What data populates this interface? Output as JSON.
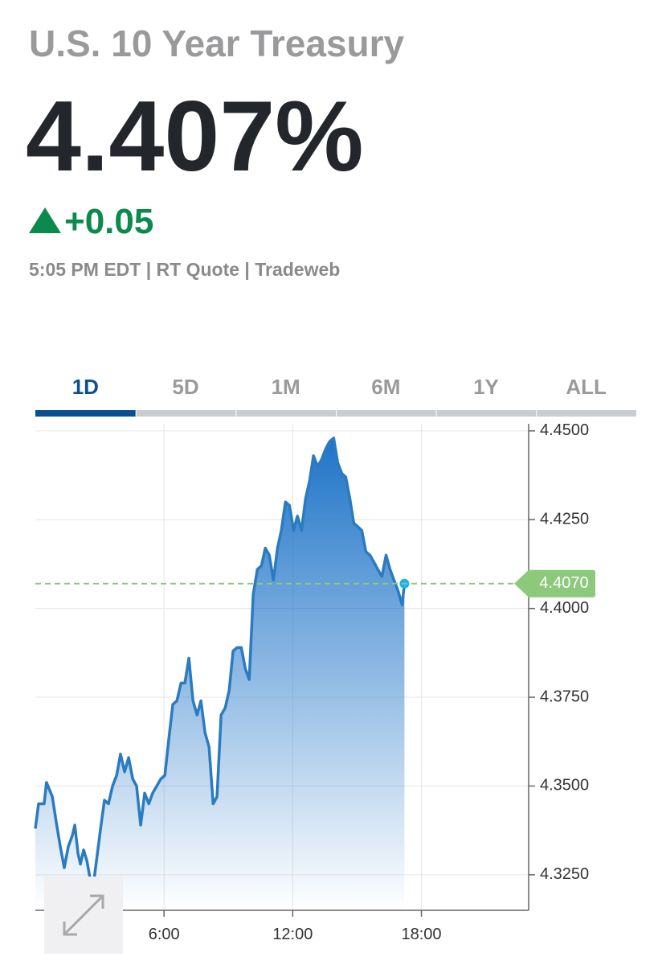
{
  "header": {
    "title": "U.S. 10 Year Treasury",
    "price": "4.407%",
    "change": "+0.05",
    "meta": "5:05 PM EDT | RT Quote | Tradeweb"
  },
  "tabs": [
    "1D",
    "5D",
    "1M",
    "6M",
    "1Y",
    "ALL"
  ],
  "active_tab": 0,
  "chart_data": {
    "type": "area",
    "color": "#2a7bbf",
    "x": [
      0,
      0.15,
      0.41,
      0.52,
      0.79,
      0.97,
      1.16,
      1.35,
      1.54,
      1.72,
      1.84,
      1.99,
      2.1,
      2.25,
      2.4,
      2.55,
      2.7,
      2.85,
      3.04,
      3.22,
      3.41,
      3.6,
      3.79,
      3.97,
      4.16,
      4.35,
      4.54,
      4.72,
      4.91,
      5.1,
      5.29,
      5.47,
      5.66,
      5.85,
      6.04,
      6.22,
      6.41,
      6.6,
      6.79,
      6.97,
      7.16,
      7.35,
      7.54,
      7.72,
      7.91,
      8.1,
      8.29,
      8.47,
      8.66,
      8.85,
      9.04,
      9.22,
      9.41,
      9.6,
      9.79,
      9.97,
      10.16,
      10.35,
      10.54,
      10.72,
      10.91,
      11.1,
      11.29,
      11.47,
      11.66,
      11.85,
      12.04,
      12.22,
      12.41,
      12.6,
      12.79,
      12.97,
      13.16,
      13.35,
      13.54,
      13.72,
      13.91,
      14.1,
      14.29,
      14.47,
      14.66,
      14.85,
      15.04,
      15.22,
      15.41,
      15.6,
      15.79,
      15.97,
      16.16,
      16.35,
      16.54,
      16.72,
      16.91,
      17.1,
      17.21
    ],
    "values": [
      4.338,
      4.345,
      4.345,
      4.351,
      4.347,
      4.34,
      4.333,
      4.327,
      4.333,
      4.336,
      4.339,
      4.331,
      4.328,
      4.332,
      4.329,
      4.324,
      4.322,
      4.329,
      4.338,
      4.346,
      4.345,
      4.35,
      4.353,
      4.359,
      4.354,
      4.358,
      4.352,
      4.35,
      4.339,
      4.348,
      4.345,
      4.348,
      4.35,
      4.352,
      4.353,
      4.363,
      4.373,
      4.374,
      4.379,
      4.379,
      4.386,
      4.374,
      4.37,
      4.374,
      4.365,
      4.361,
      4.345,
      4.347,
      4.37,
      4.372,
      4.377,
      4.388,
      4.389,
      4.389,
      4.383,
      4.38,
      4.404,
      4.411,
      4.412,
      4.417,
      4.415,
      4.408,
      4.417,
      4.422,
      4.43,
      4.429,
      4.422,
      4.426,
      4.422,
      4.431,
      4.436,
      4.443,
      4.44,
      4.442,
      4.445,
      4.447,
      4.448,
      4.441,
      4.438,
      4.437,
      4.431,
      4.424,
      4.423,
      4.422,
      4.416,
      4.415,
      4.413,
      4.411,
      4.409,
      4.415,
      4.411,
      4.408,
      4.405,
      4.401,
      4.407
    ],
    "xlim": [
      0,
      23
    ],
    "xticks": [
      {
        "value": 6,
        "label": "6:00"
      },
      {
        "value": 12,
        "label": "12:00"
      },
      {
        "value": 18,
        "label": "18:00"
      }
    ],
    "ylim": [
      4.315,
      4.452
    ],
    "yticks": [
      {
        "value": 4.325,
        "label": "4.3250"
      },
      {
        "value": 4.35,
        "label": "4.3500"
      },
      {
        "value": 4.375,
        "label": "4.3750"
      },
      {
        "value": 4.4,
        "label": "4.4000"
      },
      {
        "value": 4.425,
        "label": "4.4250"
      },
      {
        "value": 4.45,
        "label": "4.4500"
      }
    ],
    "grid": true,
    "current": {
      "value": 4.407,
      "label": "4.4070"
    },
    "current_color": "#8cc97a"
  }
}
